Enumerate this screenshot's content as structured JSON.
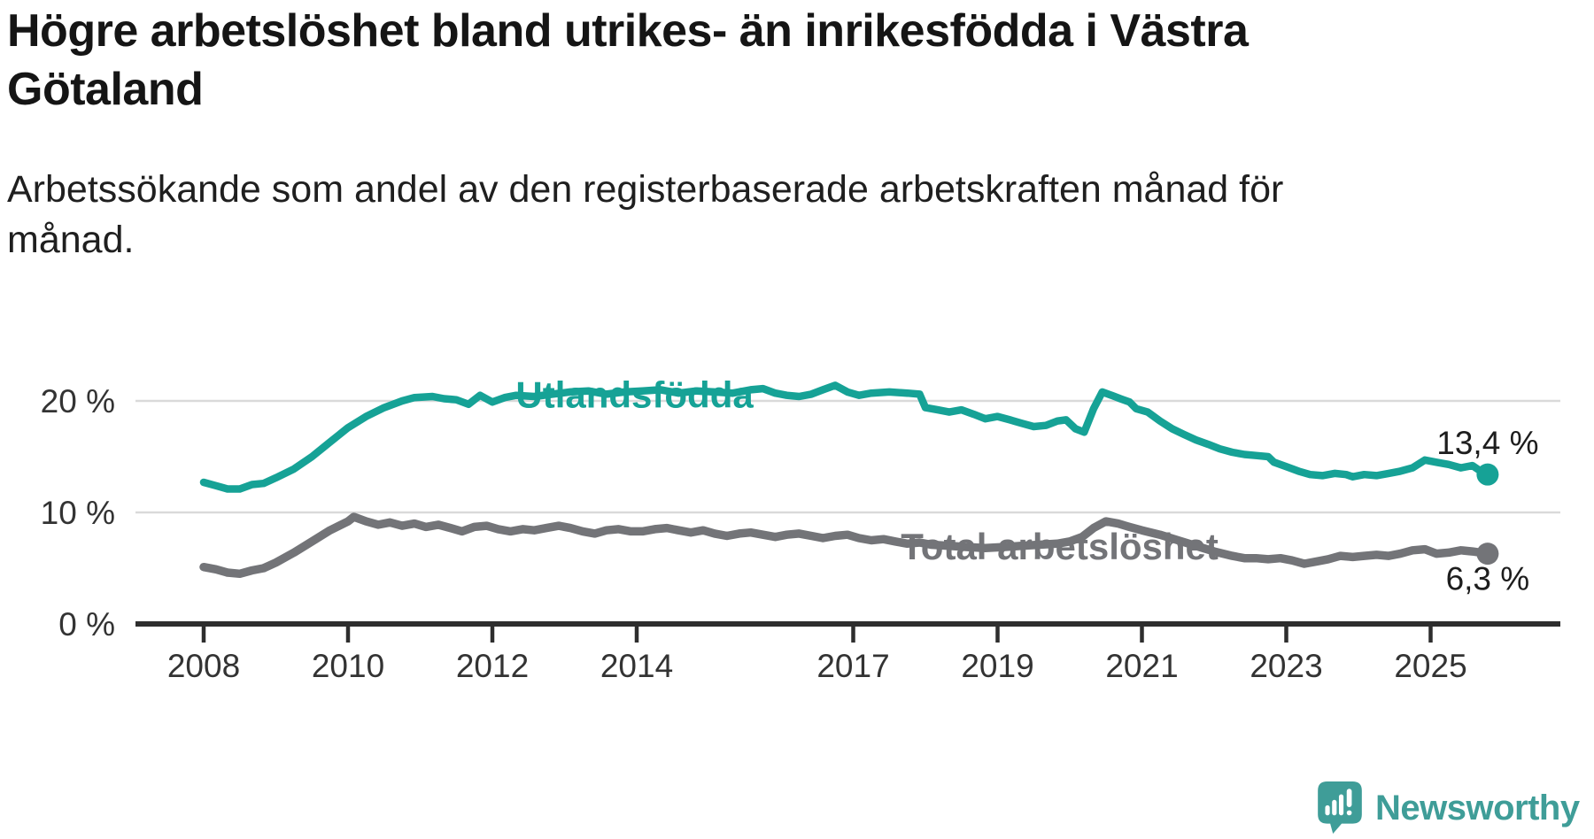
{
  "header": {
    "title_line1": "Högre arbetslöshet bland utrikes- än inrikesfödda i Västra",
    "title_line2": "Götaland",
    "subtitle_line1": "Arbetssökande som andel av den registerbaserade arbetskraften månad för",
    "subtitle_line2": "månad."
  },
  "branding": {
    "wordmark": "Newsworthy",
    "icon": "newsworthy-speech-bubble-bar-chart-icon",
    "color": "#3f9d98"
  },
  "colors": {
    "teal_line": "#16a296",
    "gray_line": "#737478",
    "title_text": "#151515",
    "axis": "#2e2e2e",
    "grid": "#dadada",
    "tick_label": "#333333",
    "value_label": "#1d1d1d",
    "background": "#ffffff"
  },
  "chart_data": {
    "type": "line",
    "unit": "%",
    "grid": "horizontal-only",
    "legend_position": "inline-labels-on-lines",
    "xlim": [
      2007.05,
      2026.8
    ],
    "ylim": [
      0,
      23
    ],
    "x_ticks": [
      {
        "year": 2008,
        "label": "2008"
      },
      {
        "year": 2010,
        "label": "2010"
      },
      {
        "year": 2012,
        "label": "2012"
      },
      {
        "year": 2014,
        "label": "2014"
      },
      {
        "year": 2017,
        "label": "2017"
      },
      {
        "year": 2019,
        "label": "2019"
      },
      {
        "year": 2021,
        "label": "2021"
      },
      {
        "year": 2023,
        "label": "2023"
      },
      {
        "year": 2025,
        "label": "2025"
      }
    ],
    "y_ticks": [
      {
        "value": 0,
        "label": "0 %"
      },
      {
        "value": 10,
        "label": "10 %"
      },
      {
        "value": 20,
        "label": "20 %"
      }
    ],
    "series": [
      {
        "name": "Total arbetslöshet",
        "color": "#737478",
        "line_width": 9.5,
        "end_value": 6.3,
        "name_label": {
          "text": "Total arbetslöshet",
          "year": 2019.86,
          "value": 7.0
        },
        "end_label": {
          "text": "6,3 %",
          "position": "below-end"
        },
        "points": [
          [
            2008.0,
            5.1
          ],
          [
            2008.17,
            4.9
          ],
          [
            2008.33,
            4.6
          ],
          [
            2008.5,
            4.5
          ],
          [
            2008.67,
            4.8
          ],
          [
            2008.83,
            5.0
          ],
          [
            2009.0,
            5.5
          ],
          [
            2009.25,
            6.4
          ],
          [
            2009.5,
            7.4
          ],
          [
            2009.75,
            8.4
          ],
          [
            2010.0,
            9.2
          ],
          [
            2010.08,
            9.6
          ],
          [
            2010.25,
            9.2
          ],
          [
            2010.42,
            8.9
          ],
          [
            2010.58,
            9.1
          ],
          [
            2010.75,
            8.8
          ],
          [
            2010.92,
            9.0
          ],
          [
            2011.08,
            8.7
          ],
          [
            2011.25,
            8.9
          ],
          [
            2011.42,
            8.6
          ],
          [
            2011.58,
            8.3
          ],
          [
            2011.75,
            8.7
          ],
          [
            2011.92,
            8.8
          ],
          [
            2012.08,
            8.5
          ],
          [
            2012.25,
            8.3
          ],
          [
            2012.42,
            8.5
          ],
          [
            2012.58,
            8.4
          ],
          [
            2012.75,
            8.6
          ],
          [
            2012.92,
            8.8
          ],
          [
            2013.08,
            8.6
          ],
          [
            2013.25,
            8.3
          ],
          [
            2013.42,
            8.1
          ],
          [
            2013.58,
            8.4
          ],
          [
            2013.75,
            8.5
          ],
          [
            2013.92,
            8.3
          ],
          [
            2014.08,
            8.3
          ],
          [
            2014.25,
            8.5
          ],
          [
            2014.42,
            8.6
          ],
          [
            2014.58,
            8.4
          ],
          [
            2014.75,
            8.2
          ],
          [
            2014.92,
            8.4
          ],
          [
            2015.08,
            8.1
          ],
          [
            2015.25,
            7.9
          ],
          [
            2015.42,
            8.1
          ],
          [
            2015.58,
            8.2
          ],
          [
            2015.75,
            8.0
          ],
          [
            2015.92,
            7.8
          ],
          [
            2016.08,
            8.0
          ],
          [
            2016.25,
            8.1
          ],
          [
            2016.42,
            7.9
          ],
          [
            2016.58,
            7.7
          ],
          [
            2016.75,
            7.9
          ],
          [
            2016.92,
            8.0
          ],
          [
            2017.08,
            7.7
          ],
          [
            2017.25,
            7.5
          ],
          [
            2017.42,
            7.6
          ],
          [
            2017.58,
            7.4
          ],
          [
            2017.75,
            7.2
          ],
          [
            2017.92,
            7.3
          ],
          [
            2018.08,
            7.1
          ],
          [
            2018.33,
            7.0
          ],
          [
            2018.58,
            6.9
          ],
          [
            2018.83,
            6.8
          ],
          [
            2019.08,
            6.9
          ],
          [
            2019.33,
            7.0
          ],
          [
            2019.58,
            7.1
          ],
          [
            2019.83,
            7.2
          ],
          [
            2020.0,
            7.4
          ],
          [
            2020.17,
            7.8
          ],
          [
            2020.33,
            8.6
          ],
          [
            2020.5,
            9.2
          ],
          [
            2020.67,
            9.0
          ],
          [
            2020.83,
            8.7
          ],
          [
            2021.0,
            8.4
          ],
          [
            2021.25,
            8.0
          ],
          [
            2021.5,
            7.5
          ],
          [
            2021.75,
            7.0
          ],
          [
            2022.0,
            6.5
          ],
          [
            2022.25,
            6.1
          ],
          [
            2022.42,
            5.9
          ],
          [
            2022.58,
            5.9
          ],
          [
            2022.75,
            5.8
          ],
          [
            2022.92,
            5.9
          ],
          [
            2023.08,
            5.7
          ],
          [
            2023.25,
            5.4
          ],
          [
            2023.42,
            5.6
          ],
          [
            2023.58,
            5.8
          ],
          [
            2023.75,
            6.1
          ],
          [
            2023.92,
            6.0
          ],
          [
            2024.08,
            6.1
          ],
          [
            2024.25,
            6.2
          ],
          [
            2024.42,
            6.1
          ],
          [
            2024.58,
            6.3
          ],
          [
            2024.75,
            6.6
          ],
          [
            2024.92,
            6.7
          ],
          [
            2025.08,
            6.3
          ],
          [
            2025.25,
            6.4
          ],
          [
            2025.42,
            6.6
          ],
          [
            2025.58,
            6.5
          ],
          [
            2025.79,
            6.3
          ]
        ]
      },
      {
        "name": "Utlandsfödda",
        "color": "#16a296",
        "line_width": 8.5,
        "end_value": 13.4,
        "name_label": {
          "text": "Utlandsfödda",
          "year": 2013.97,
          "value": 20.6
        },
        "end_label": {
          "text": "13,4 %",
          "position": "above-end"
        },
        "points": [
          [
            2008.0,
            12.7
          ],
          [
            2008.17,
            12.4
          ],
          [
            2008.33,
            12.1
          ],
          [
            2008.5,
            12.1
          ],
          [
            2008.67,
            12.5
          ],
          [
            2008.83,
            12.6
          ],
          [
            2009.0,
            13.1
          ],
          [
            2009.25,
            13.9
          ],
          [
            2009.5,
            15.0
          ],
          [
            2009.75,
            16.3
          ],
          [
            2010.0,
            17.6
          ],
          [
            2010.25,
            18.6
          ],
          [
            2010.5,
            19.4
          ],
          [
            2010.75,
            20.0
          ],
          [
            2010.92,
            20.3
          ],
          [
            2011.17,
            20.4
          ],
          [
            2011.33,
            20.2
          ],
          [
            2011.5,
            20.1
          ],
          [
            2011.67,
            19.7
          ],
          [
            2011.83,
            20.5
          ],
          [
            2012.0,
            19.9
          ],
          [
            2012.17,
            20.3
          ],
          [
            2012.33,
            20.5
          ],
          [
            2012.58,
            20.4
          ],
          [
            2012.83,
            20.6
          ],
          [
            2013.08,
            20.8
          ],
          [
            2013.33,
            20.9
          ],
          [
            2013.58,
            20.6
          ],
          [
            2013.83,
            20.8
          ],
          [
            2014.08,
            20.9
          ],
          [
            2014.33,
            21.0
          ],
          [
            2014.58,
            20.7
          ],
          [
            2014.83,
            20.9
          ],
          [
            2015.08,
            20.8
          ],
          [
            2015.33,
            20.7
          ],
          [
            2015.58,
            21.0
          ],
          [
            2015.75,
            21.1
          ],
          [
            2015.92,
            20.7
          ],
          [
            2016.08,
            20.5
          ],
          [
            2016.25,
            20.4
          ],
          [
            2016.42,
            20.6
          ],
          [
            2016.58,
            21.0
          ],
          [
            2016.75,
            21.4
          ],
          [
            2016.92,
            20.8
          ],
          [
            2017.08,
            20.5
          ],
          [
            2017.25,
            20.7
          ],
          [
            2017.5,
            20.8
          ],
          [
            2017.75,
            20.7
          ],
          [
            2017.92,
            20.6
          ],
          [
            2018.0,
            19.4
          ],
          [
            2018.17,
            19.2
          ],
          [
            2018.33,
            19.0
          ],
          [
            2018.5,
            19.2
          ],
          [
            2018.67,
            18.8
          ],
          [
            2018.83,
            18.4
          ],
          [
            2019.0,
            18.6
          ],
          [
            2019.17,
            18.3
          ],
          [
            2019.33,
            18.0
          ],
          [
            2019.5,
            17.7
          ],
          [
            2019.67,
            17.8
          ],
          [
            2019.83,
            18.2
          ],
          [
            2019.95,
            18.3
          ],
          [
            2020.08,
            17.5
          ],
          [
            2020.2,
            17.2
          ],
          [
            2020.33,
            19.3
          ],
          [
            2020.45,
            20.8
          ],
          [
            2020.58,
            20.5
          ],
          [
            2020.7,
            20.2
          ],
          [
            2020.83,
            19.9
          ],
          [
            2020.92,
            19.3
          ],
          [
            2021.08,
            19.0
          ],
          [
            2021.25,
            18.2
          ],
          [
            2021.42,
            17.5
          ],
          [
            2021.58,
            17.0
          ],
          [
            2021.75,
            16.5
          ],
          [
            2021.92,
            16.1
          ],
          [
            2022.08,
            15.7
          ],
          [
            2022.25,
            15.4
          ],
          [
            2022.42,
            15.2
          ],
          [
            2022.58,
            15.1
          ],
          [
            2022.75,
            15.0
          ],
          [
            2022.83,
            14.5
          ],
          [
            2023.0,
            14.1
          ],
          [
            2023.17,
            13.7
          ],
          [
            2023.33,
            13.4
          ],
          [
            2023.5,
            13.3
          ],
          [
            2023.67,
            13.5
          ],
          [
            2023.83,
            13.4
          ],
          [
            2023.92,
            13.2
          ],
          [
            2024.08,
            13.4
          ],
          [
            2024.25,
            13.3
          ],
          [
            2024.42,
            13.5
          ],
          [
            2024.58,
            13.7
          ],
          [
            2024.75,
            14.0
          ],
          [
            2024.92,
            14.7
          ],
          [
            2025.08,
            14.5
          ],
          [
            2025.25,
            14.3
          ],
          [
            2025.42,
            14.0
          ],
          [
            2025.58,
            14.2
          ],
          [
            2025.67,
            13.8
          ],
          [
            2025.79,
            13.4
          ]
        ]
      }
    ]
  }
}
